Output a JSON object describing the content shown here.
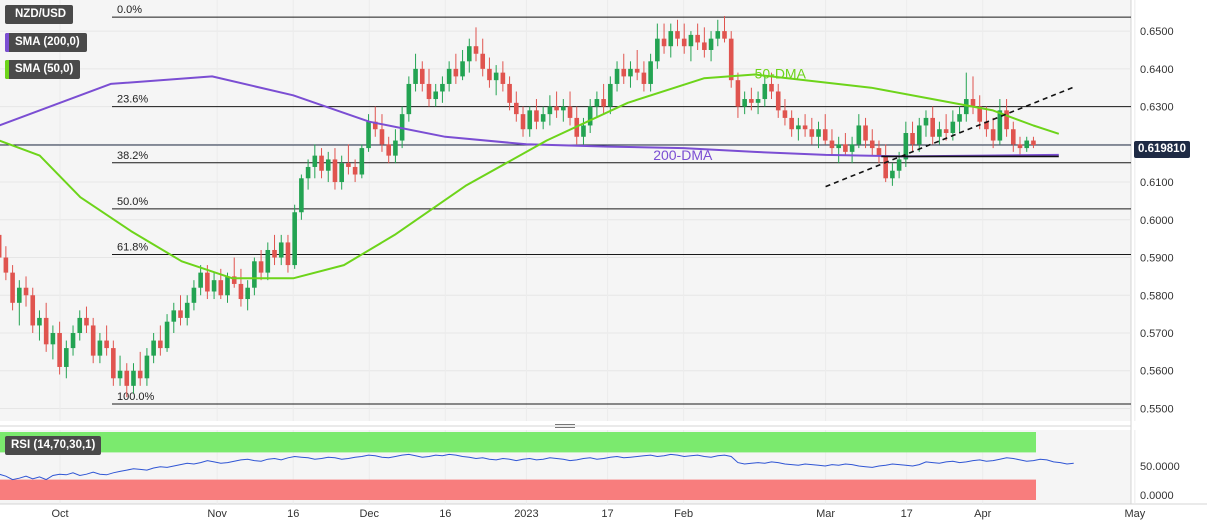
{
  "chart_data": {
    "type": "candlestick",
    "title": "NZD/USD",
    "indicators": [
      {
        "label": "SMA (200,0)",
        "color": "#7b4ed3"
      },
      {
        "label": "SMA (50,0)",
        "color": "#6dd41a"
      }
    ],
    "current_price": "0.619810",
    "y_ticks": [
      "0.6500",
      "0.6400",
      "0.6300",
      "0.6200",
      "0.6100",
      "0.6000",
      "0.5900",
      "0.5800",
      "0.5700",
      "0.5600",
      "0.5500"
    ],
    "ylim": [
      0.5488,
      0.6548
    ],
    "x_ticks": [
      {
        "label": "Oct",
        "day": 0
      },
      {
        "label": "Nov",
        "day": 31
      },
      {
        "label": "16",
        "day": 46
      },
      {
        "label": "Dec",
        "day": 61
      },
      {
        "label": "16",
        "day": 76
      },
      {
        "label": "2023",
        "day": 92
      },
      {
        "label": "17",
        "day": 108
      },
      {
        "label": "Feb",
        "day": 123
      },
      {
        "label": "Mar",
        "day": 151
      },
      {
        "label": "17",
        "day": 167
      },
      {
        "label": "Apr",
        "day": 182
      },
      {
        "label": "May",
        "day": 212
      }
    ],
    "fibonacci": [
      {
        "label": "0.0%",
        "value": 0.6537
      },
      {
        "label": "23.6%",
        "value": 0.63
      },
      {
        "label": "38.2%",
        "value": 0.6151
      },
      {
        "label": "50.0%",
        "value": 0.6029
      },
      {
        "label": "61.8%",
        "value": 0.5908
      },
      {
        "label": "100.0%",
        "value": 0.5512
      }
    ],
    "annotations": [
      {
        "label": "50-DMA",
        "day": 137,
        "value": 0.6375,
        "color": "#6dd41a"
      },
      {
        "label": "200-DMA",
        "day": 117,
        "value": 0.6158,
        "color": "#7b4ed3"
      }
    ],
    "trendline": {
      "day_start": 151,
      "value_start": 0.6088,
      "day_end": 200,
      "value_end": 0.6352
    },
    "support_line": {
      "day_start": 162,
      "day_end": 197,
      "value": 0.6168
    },
    "candles_day_start": -12,
    "candles": [
      [
        0.596,
        0.599,
        0.588,
        0.59
      ],
      [
        0.59,
        0.593,
        0.584,
        0.586
      ],
      [
        0.586,
        0.588,
        0.576,
        0.578
      ],
      [
        0.578,
        0.584,
        0.572,
        0.582
      ],
      [
        0.582,
        0.585,
        0.577,
        0.58
      ],
      [
        0.58,
        0.582,
        0.57,
        0.572
      ],
      [
        0.572,
        0.576,
        0.568,
        0.574
      ],
      [
        0.574,
        0.578,
        0.565,
        0.567
      ],
      [
        0.567,
        0.572,
        0.563,
        0.57
      ],
      [
        0.57,
        0.573,
        0.559,
        0.561
      ],
      [
        0.561,
        0.568,
        0.558,
        0.566
      ],
      [
        0.566,
        0.572,
        0.564,
        0.57
      ],
      [
        0.57,
        0.576,
        0.568,
        0.574
      ],
      [
        0.574,
        0.577,
        0.57,
        0.572
      ],
      [
        0.572,
        0.574,
        0.562,
        0.564
      ],
      [
        0.564,
        0.57,
        0.562,
        0.568
      ],
      [
        0.568,
        0.572,
        0.564,
        0.566
      ],
      [
        0.566,
        0.568,
        0.556,
        0.558
      ],
      [
        0.558,
        0.564,
        0.556,
        0.56
      ],
      [
        0.56,
        0.562,
        0.553,
        0.556
      ],
      [
        0.556,
        0.562,
        0.554,
        0.56
      ],
      [
        0.56,
        0.565,
        0.556,
        0.558
      ],
      [
        0.558,
        0.566,
        0.556,
        0.564
      ],
      [
        0.564,
        0.57,
        0.562,
        0.568
      ],
      [
        0.568,
        0.572,
        0.564,
        0.566
      ],
      [
        0.566,
        0.575,
        0.565,
        0.573
      ],
      [
        0.573,
        0.578,
        0.57,
        0.576
      ],
      [
        0.576,
        0.58,
        0.572,
        0.574
      ],
      [
        0.574,
        0.58,
        0.572,
        0.578
      ],
      [
        0.578,
        0.584,
        0.576,
        0.582
      ],
      [
        0.582,
        0.588,
        0.58,
        0.586
      ],
      [
        0.586,
        0.588,
        0.579,
        0.581
      ],
      [
        0.581,
        0.586,
        0.579,
        0.584
      ],
      [
        0.584,
        0.587,
        0.579,
        0.58
      ],
      [
        0.58,
        0.586,
        0.578,
        0.585
      ],
      [
        0.585,
        0.59,
        0.582,
        0.583
      ],
      [
        0.583,
        0.587,
        0.577,
        0.579
      ],
      [
        0.579,
        0.584,
        0.576,
        0.582
      ],
      [
        0.582,
        0.59,
        0.58,
        0.589
      ],
      [
        0.589,
        0.592,
        0.584,
        0.586
      ],
      [
        0.586,
        0.594,
        0.584,
        0.592
      ],
      [
        0.592,
        0.596,
        0.588,
        0.59
      ],
      [
        0.59,
        0.596,
        0.588,
        0.594
      ],
      [
        0.594,
        0.596,
        0.586,
        0.588
      ],
      [
        0.588,
        0.604,
        0.587,
        0.602
      ],
      [
        0.602,
        0.612,
        0.6,
        0.611
      ],
      [
        0.611,
        0.616,
        0.608,
        0.614
      ],
      [
        0.614,
        0.62,
        0.611,
        0.617
      ],
      [
        0.617,
        0.619,
        0.611,
        0.613
      ],
      [
        0.613,
        0.618,
        0.61,
        0.616
      ],
      [
        0.616,
        0.619,
        0.608,
        0.61
      ],
      [
        0.61,
        0.617,
        0.608,
        0.615
      ],
      [
        0.615,
        0.62,
        0.612,
        0.614
      ],
      [
        0.614,
        0.616,
        0.61,
        0.612
      ],
      [
        0.612,
        0.62,
        0.611,
        0.619
      ],
      [
        0.619,
        0.628,
        0.618,
        0.626
      ],
      [
        0.626,
        0.63,
        0.622,
        0.624
      ],
      [
        0.624,
        0.628,
        0.618,
        0.62
      ],
      [
        0.62,
        0.622,
        0.615,
        0.617
      ],
      [
        0.617,
        0.624,
        0.615,
        0.621
      ],
      [
        0.621,
        0.63,
        0.619,
        0.628
      ],
      [
        0.628,
        0.638,
        0.626,
        0.636
      ],
      [
        0.636,
        0.644,
        0.634,
        0.64
      ],
      [
        0.64,
        0.642,
        0.634,
        0.636
      ],
      [
        0.636,
        0.64,
        0.63,
        0.632
      ],
      [
        0.632,
        0.636,
        0.63,
        0.634
      ],
      [
        0.634,
        0.638,
        0.631,
        0.636
      ],
      [
        0.636,
        0.642,
        0.634,
        0.64
      ],
      [
        0.64,
        0.644,
        0.636,
        0.638
      ],
      [
        0.638,
        0.645,
        0.637,
        0.642
      ],
      [
        0.642,
        0.648,
        0.639,
        0.646
      ],
      [
        0.646,
        0.651,
        0.642,
        0.644
      ],
      [
        0.644,
        0.648,
        0.638,
        0.64
      ],
      [
        0.64,
        0.643,
        0.635,
        0.637
      ],
      [
        0.637,
        0.641,
        0.633,
        0.639
      ],
      [
        0.639,
        0.642,
        0.634,
        0.636
      ],
      [
        0.636,
        0.638,
        0.629,
        0.631
      ],
      [
        0.631,
        0.634,
        0.626,
        0.628
      ],
      [
        0.628,
        0.63,
        0.622,
        0.624
      ],
      [
        0.624,
        0.63,
        0.622,
        0.629
      ],
      [
        0.629,
        0.632,
        0.624,
        0.626
      ],
      [
        0.626,
        0.63,
        0.624,
        0.628
      ],
      [
        0.628,
        0.633,
        0.625,
        0.63
      ],
      [
        0.63,
        0.634,
        0.627,
        0.629
      ],
      [
        0.629,
        0.632,
        0.626,
        0.63
      ],
      [
        0.63,
        0.634,
        0.625,
        0.627
      ],
      [
        0.627,
        0.63,
        0.62,
        0.622
      ],
      [
        0.622,
        0.627,
        0.62,
        0.625
      ],
      [
        0.625,
        0.632,
        0.623,
        0.63
      ],
      [
        0.63,
        0.634,
        0.627,
        0.632
      ],
      [
        0.632,
        0.636,
        0.628,
        0.63
      ],
      [
        0.63,
        0.638,
        0.628,
        0.636
      ],
      [
        0.636,
        0.642,
        0.634,
        0.64
      ],
      [
        0.64,
        0.644,
        0.636,
        0.638
      ],
      [
        0.638,
        0.642,
        0.635,
        0.64
      ],
      [
        0.64,
        0.645,
        0.637,
        0.639
      ],
      [
        0.639,
        0.642,
        0.634,
        0.636
      ],
      [
        0.636,
        0.644,
        0.634,
        0.642
      ],
      [
        0.642,
        0.652,
        0.64,
        0.648
      ],
      [
        0.648,
        0.652,
        0.644,
        0.646
      ],
      [
        0.646,
        0.652,
        0.643,
        0.65
      ],
      [
        0.65,
        0.653,
        0.646,
        0.648
      ],
      [
        0.648,
        0.652,
        0.644,
        0.646
      ],
      [
        0.646,
        0.65,
        0.642,
        0.649
      ],
      [
        0.649,
        0.652,
        0.645,
        0.647
      ],
      [
        0.647,
        0.651,
        0.643,
        0.645
      ],
      [
        0.645,
        0.65,
        0.642,
        0.648
      ],
      [
        0.648,
        0.653,
        0.646,
        0.65
      ],
      [
        0.65,
        0.654,
        0.647,
        0.648
      ],
      [
        0.648,
        0.65,
        0.635,
        0.637
      ],
      [
        0.637,
        0.639,
        0.627,
        0.63
      ],
      [
        0.63,
        0.634,
        0.628,
        0.632
      ],
      [
        0.632,
        0.635,
        0.629,
        0.631
      ],
      [
        0.631,
        0.634,
        0.628,
        0.632
      ],
      [
        0.632,
        0.638,
        0.63,
        0.636
      ],
      [
        0.636,
        0.639,
        0.632,
        0.634
      ],
      [
        0.634,
        0.636,
        0.627,
        0.629
      ],
      [
        0.629,
        0.632,
        0.625,
        0.627
      ],
      [
        0.627,
        0.629,
        0.622,
        0.624
      ],
      [
        0.624,
        0.627,
        0.621,
        0.625
      ],
      [
        0.625,
        0.628,
        0.622,
        0.624
      ],
      [
        0.624,
        0.627,
        0.62,
        0.622
      ],
      [
        0.622,
        0.626,
        0.619,
        0.624
      ],
      [
        0.624,
        0.628,
        0.62,
        0.621
      ],
      [
        0.621,
        0.624,
        0.617,
        0.619
      ],
      [
        0.619,
        0.622,
        0.615,
        0.62
      ],
      [
        0.62,
        0.623,
        0.617,
        0.618
      ],
      [
        0.618,
        0.622,
        0.615,
        0.62
      ],
      [
        0.62,
        0.628,
        0.619,
        0.625
      ],
      [
        0.625,
        0.627,
        0.619,
        0.621
      ],
      [
        0.621,
        0.624,
        0.617,
        0.619
      ],
      [
        0.619,
        0.621,
        0.615,
        0.617
      ],
      [
        0.617,
        0.62,
        0.61,
        0.611
      ],
      [
        0.611,
        0.615,
        0.609,
        0.613
      ],
      [
        0.613,
        0.618,
        0.611,
        0.616
      ],
      [
        0.616,
        0.626,
        0.614,
        0.623
      ],
      [
        0.623,
        0.626,
        0.618,
        0.62
      ],
      [
        0.62,
        0.627,
        0.618,
        0.625
      ],
      [
        0.625,
        0.629,
        0.622,
        0.627
      ],
      [
        0.627,
        0.63,
        0.62,
        0.622
      ],
      [
        0.622,
        0.626,
        0.62,
        0.624
      ],
      [
        0.624,
        0.628,
        0.621,
        0.623
      ],
      [
        0.623,
        0.629,
        0.621,
        0.626
      ],
      [
        0.626,
        0.63,
        0.623,
        0.628
      ],
      [
        0.628,
        0.639,
        0.626,
        0.632
      ],
      [
        0.632,
        0.638,
        0.628,
        0.63
      ],
      [
        0.63,
        0.633,
        0.624,
        0.626
      ],
      [
        0.626,
        0.63,
        0.622,
        0.624
      ],
      [
        0.624,
        0.627,
        0.619,
        0.621
      ],
      [
        0.621,
        0.632,
        0.62,
        0.629
      ],
      [
        0.629,
        0.632,
        0.622,
        0.624
      ],
      [
        0.624,
        0.626,
        0.618,
        0.62
      ],
      [
        0.62,
        0.622,
        0.617,
        0.619
      ],
      [
        0.619,
        0.622,
        0.618,
        0.621
      ],
      [
        0.621,
        0.622,
        0.619,
        0.6198
      ]
    ],
    "sma200": [
      [
        -12,
        0.625
      ],
      [
        10,
        0.636
      ],
      [
        30,
        0.638
      ],
      [
        46,
        0.633
      ],
      [
        61,
        0.626
      ],
      [
        76,
        0.622
      ],
      [
        92,
        0.62
      ],
      [
        108,
        0.6194
      ],
      [
        123,
        0.619
      ],
      [
        137,
        0.618
      ],
      [
        151,
        0.6172
      ],
      [
        167,
        0.6168
      ],
      [
        182,
        0.617
      ],
      [
        197,
        0.6172
      ]
    ],
    "sma50": [
      [
        -12,
        0.621
      ],
      [
        -4,
        0.617
      ],
      [
        4,
        0.606
      ],
      [
        14,
        0.597
      ],
      [
        24,
        0.589
      ],
      [
        34,
        0.5845
      ],
      [
        46,
        0.5845
      ],
      [
        56,
        0.588
      ],
      [
        66,
        0.596
      ],
      [
        80,
        0.609
      ],
      [
        96,
        0.621
      ],
      [
        112,
        0.631
      ],
      [
        127,
        0.6375
      ],
      [
        137,
        0.6385
      ],
      [
        147,
        0.637
      ],
      [
        160,
        0.635
      ],
      [
        172,
        0.632
      ],
      [
        184,
        0.629
      ],
      [
        192,
        0.625
      ],
      [
        197,
        0.6228
      ]
    ],
    "rsi": {
      "label": "RSI (14,70,30,1)",
      "ticks": [
        "50.0000",
        "0.0000"
      ],
      "overbought": 70,
      "oversold": 30,
      "values": [
        38,
        35,
        30,
        32,
        35,
        31,
        34,
        30,
        36,
        38,
        37,
        40,
        36,
        38,
        41,
        38,
        37,
        40,
        42,
        44,
        46,
        45,
        44,
        47,
        49,
        48,
        50,
        52,
        54,
        53,
        55,
        58,
        56,
        54,
        55,
        57,
        59,
        60,
        58,
        57,
        60,
        61,
        59,
        62,
        64,
        63,
        62,
        60,
        61,
        63,
        62,
        60,
        61,
        63,
        64,
        66,
        65,
        63,
        62,
        64,
        66,
        67,
        65,
        63,
        64,
        66,
        65,
        67,
        66,
        64,
        63,
        61,
        62,
        60,
        59,
        61,
        60,
        58,
        60,
        61,
        59,
        60,
        62,
        61,
        60,
        58,
        59,
        61,
        62,
        60,
        61,
        63,
        64,
        62,
        63,
        64,
        65,
        66,
        64,
        65,
        67,
        66,
        64,
        65,
        66,
        64,
        63,
        65,
        66,
        64,
        55,
        53,
        54,
        55,
        54,
        56,
        55,
        53,
        52,
        51,
        53,
        52,
        51,
        50,
        52,
        51,
        53,
        52,
        50,
        49,
        48,
        50,
        51,
        53,
        52,
        51,
        50,
        52,
        56,
        55,
        54,
        56,
        57,
        55,
        56,
        58,
        59,
        57,
        58,
        60,
        62,
        61,
        59,
        57,
        58,
        60,
        59,
        56,
        55,
        53,
        54
      ]
    }
  }
}
